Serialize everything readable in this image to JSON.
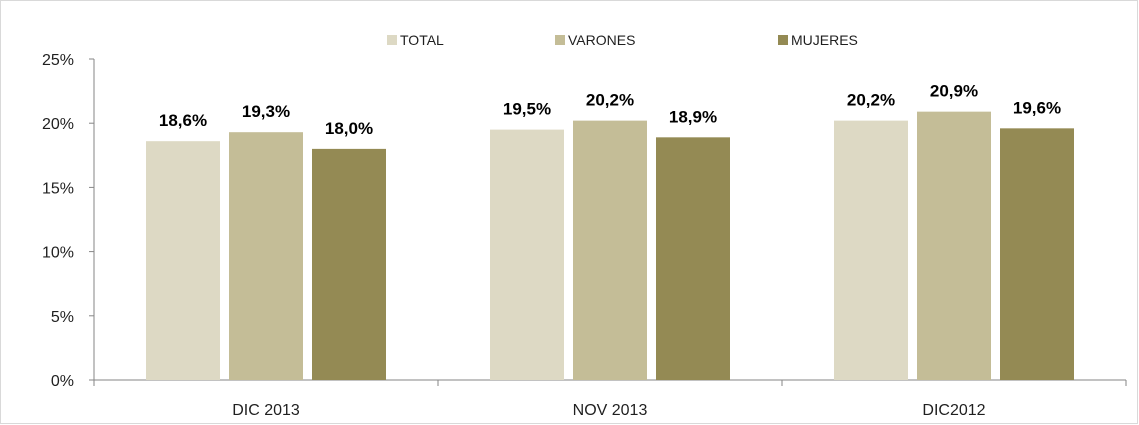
{
  "chart_data": {
    "type": "bar",
    "title": "",
    "xlabel": "",
    "ylabel": "",
    "ylim": [
      0,
      25
    ],
    "y_ticks": [
      "0%",
      "5%",
      "10%",
      "15%",
      "20%",
      "25%"
    ],
    "y_tick_values": [
      0,
      5,
      10,
      15,
      20,
      25
    ],
    "grid": false,
    "legend_position": "top",
    "categories": [
      "DIC 2013",
      "NOV 2013",
      "DIC2012"
    ],
    "series": [
      {
        "name": "TOTAL",
        "color": "#ddd9c4",
        "values": [
          18.6,
          19.5,
          20.2
        ],
        "labels": [
          "18,6%",
          "19,5%",
          "20,2%"
        ]
      },
      {
        "name": "VARONES",
        "color": "#c4bd97",
        "values": [
          19.3,
          20.2,
          20.9
        ],
        "labels": [
          "19,3%",
          "20,2%",
          "20,9%"
        ]
      },
      {
        "name": "MUJERES",
        "color": "#948a54",
        "values": [
          18.0,
          18.9,
          19.6
        ],
        "labels": [
          "18,0%",
          "18,9%",
          "19,6%"
        ]
      }
    ]
  }
}
